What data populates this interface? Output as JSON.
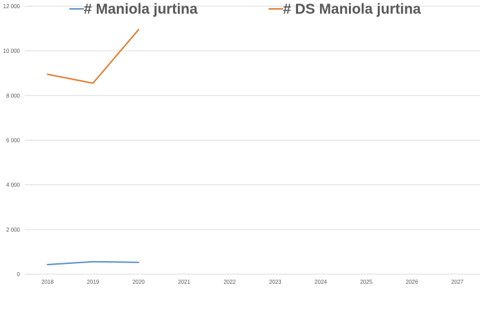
{
  "chart_data": {
    "type": "line",
    "title": "",
    "xlabel": "",
    "ylabel": "",
    "categories": [
      "2018",
      "2019",
      "2020",
      "2021",
      "2022",
      "2023",
      "2024",
      "2025",
      "2026",
      "2027"
    ],
    "ylim": [
      0,
      12000
    ],
    "yticks": [
      0,
      2000,
      4000,
      6000,
      8000,
      10000,
      12000
    ],
    "ytick_labels": [
      "0",
      "2 000",
      "4 000",
      "6 000",
      "8 000",
      "10 000",
      "12 000"
    ],
    "grid": true,
    "legend_position": "top",
    "series": [
      {
        "name": "# Maniola jurtina",
        "color": "#5b8fc9",
        "values": [
          430,
          560,
          530,
          null,
          null,
          null,
          null,
          null,
          null,
          null
        ]
      },
      {
        "name": "# DS Maniola jurtina",
        "color": "#e07b2a",
        "values": [
          8950,
          8550,
          10950,
          null,
          null,
          null,
          null,
          null,
          null,
          null
        ]
      }
    ]
  }
}
